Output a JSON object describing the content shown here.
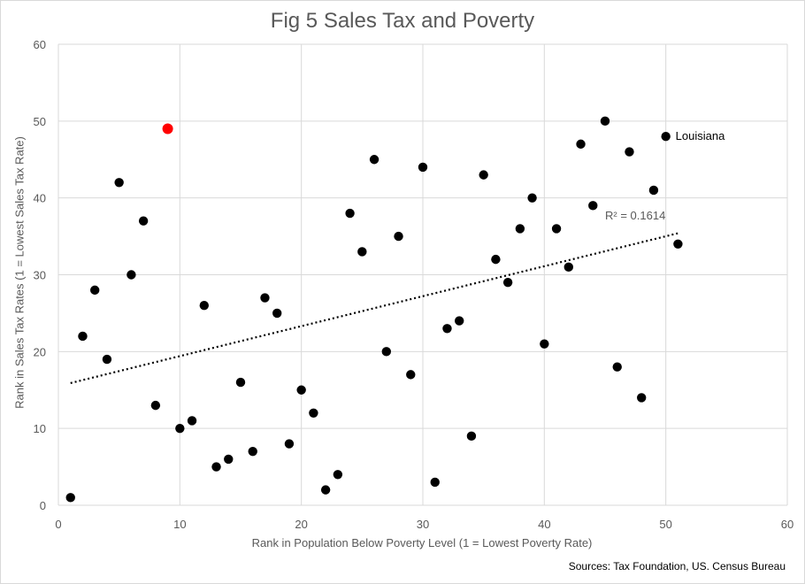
{
  "chart_data": {
    "type": "scatter",
    "title": "Fig 5 Sales Tax and Poverty",
    "xlabel": "Rank in Population Below Poverty Level (1 = Lowest Poverty Rate)",
    "ylabel": "Rank in Sales Tax Rates (1 = Lowest Sales Tax Rate)",
    "xlim": [
      0,
      60
    ],
    "ylim": [
      0,
      60
    ],
    "xticks": [
      "0",
      "10",
      "20",
      "30",
      "40",
      "50",
      "60"
    ],
    "yticks": [
      "0",
      "10",
      "20",
      "30",
      "40",
      "50",
      "60"
    ],
    "grid": true,
    "points": [
      {
        "x": 1,
        "y": 1
      },
      {
        "x": 2,
        "y": 22
      },
      {
        "x": 3,
        "y": 28
      },
      {
        "x": 4,
        "y": 19
      },
      {
        "x": 5,
        "y": 42
      },
      {
        "x": 6,
        "y": 30
      },
      {
        "x": 7,
        "y": 37
      },
      {
        "x": 8,
        "y": 13
      },
      {
        "x": 9,
        "y": 49,
        "highlight": true
      },
      {
        "x": 10,
        "y": 10
      },
      {
        "x": 11,
        "y": 11
      },
      {
        "x": 12,
        "y": 26
      },
      {
        "x": 13,
        "y": 5
      },
      {
        "x": 14,
        "y": 6
      },
      {
        "x": 15,
        "y": 16
      },
      {
        "x": 16,
        "y": 7
      },
      {
        "x": 17,
        "y": 27
      },
      {
        "x": 18,
        "y": 25
      },
      {
        "x": 19,
        "y": 8
      },
      {
        "x": 20,
        "y": 15
      },
      {
        "x": 21,
        "y": 12
      },
      {
        "x": 22,
        "y": 2
      },
      {
        "x": 23,
        "y": 4
      },
      {
        "x": 24,
        "y": 38
      },
      {
        "x": 25,
        "y": 33
      },
      {
        "x": 26,
        "y": 45
      },
      {
        "x": 27,
        "y": 20
      },
      {
        "x": 28,
        "y": 35
      },
      {
        "x": 29,
        "y": 17
      },
      {
        "x": 30,
        "y": 44
      },
      {
        "x": 31,
        "y": 3
      },
      {
        "x": 32,
        "y": 23
      },
      {
        "x": 33,
        "y": 24
      },
      {
        "x": 34,
        "y": 9
      },
      {
        "x": 35,
        "y": 43
      },
      {
        "x": 36,
        "y": 32
      },
      {
        "x": 37,
        "y": 29
      },
      {
        "x": 38,
        "y": 36
      },
      {
        "x": 39,
        "y": 40
      },
      {
        "x": 40,
        "y": 21
      },
      {
        "x": 41,
        "y": 36
      },
      {
        "x": 42,
        "y": 31
      },
      {
        "x": 43,
        "y": 47
      },
      {
        "x": 44,
        "y": 39
      },
      {
        "x": 45,
        "y": 50
      },
      {
        "x": 46,
        "y": 18
      },
      {
        "x": 47,
        "y": 46
      },
      {
        "x": 48,
        "y": 14
      },
      {
        "x": 49,
        "y": 41
      },
      {
        "x": 50,
        "y": 48,
        "label": "Louisiana"
      },
      {
        "x": 51,
        "y": 34
      }
    ],
    "trendline": {
      "x": [
        1,
        51
      ],
      "y": [
        15.9,
        35.4
      ],
      "style": "dotted",
      "label": "R² = 0.1614"
    },
    "colors": {
      "point": "#000000",
      "highlight": "#ff0000",
      "grid": "#d9d9d9",
      "trend": "#000000"
    }
  },
  "source_note": "Sources: Tax Foundation, US. Census Bureau"
}
